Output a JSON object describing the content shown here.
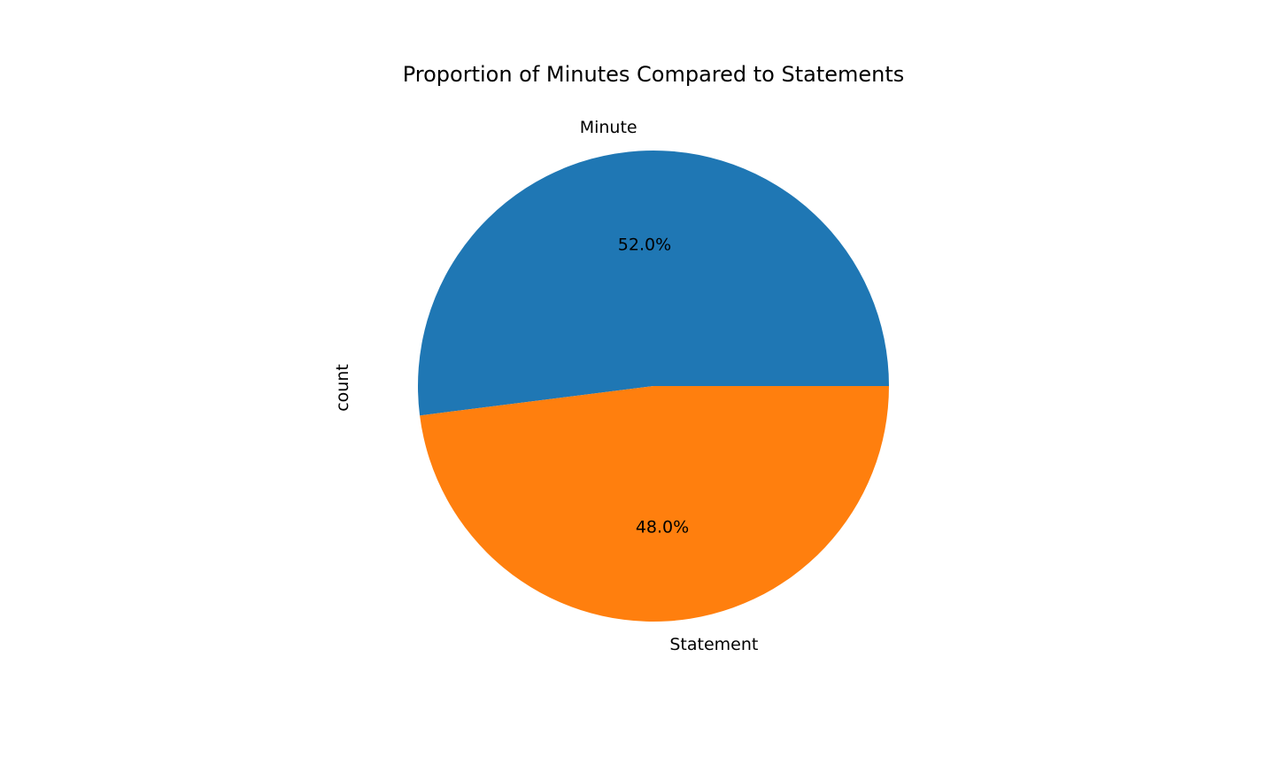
{
  "chart_data": {
    "type": "pie",
    "title": "Proportion of Minutes Compared to Statements",
    "ylabel": "count",
    "slices": [
      {
        "label": "Minute",
        "value": 52.0,
        "pct_label": "52.0%",
        "color": "#1f77b4"
      },
      {
        "label": "Statement",
        "value": 48.0,
        "pct_label": "48.0%",
        "color": "#ff7f0e"
      }
    ]
  }
}
